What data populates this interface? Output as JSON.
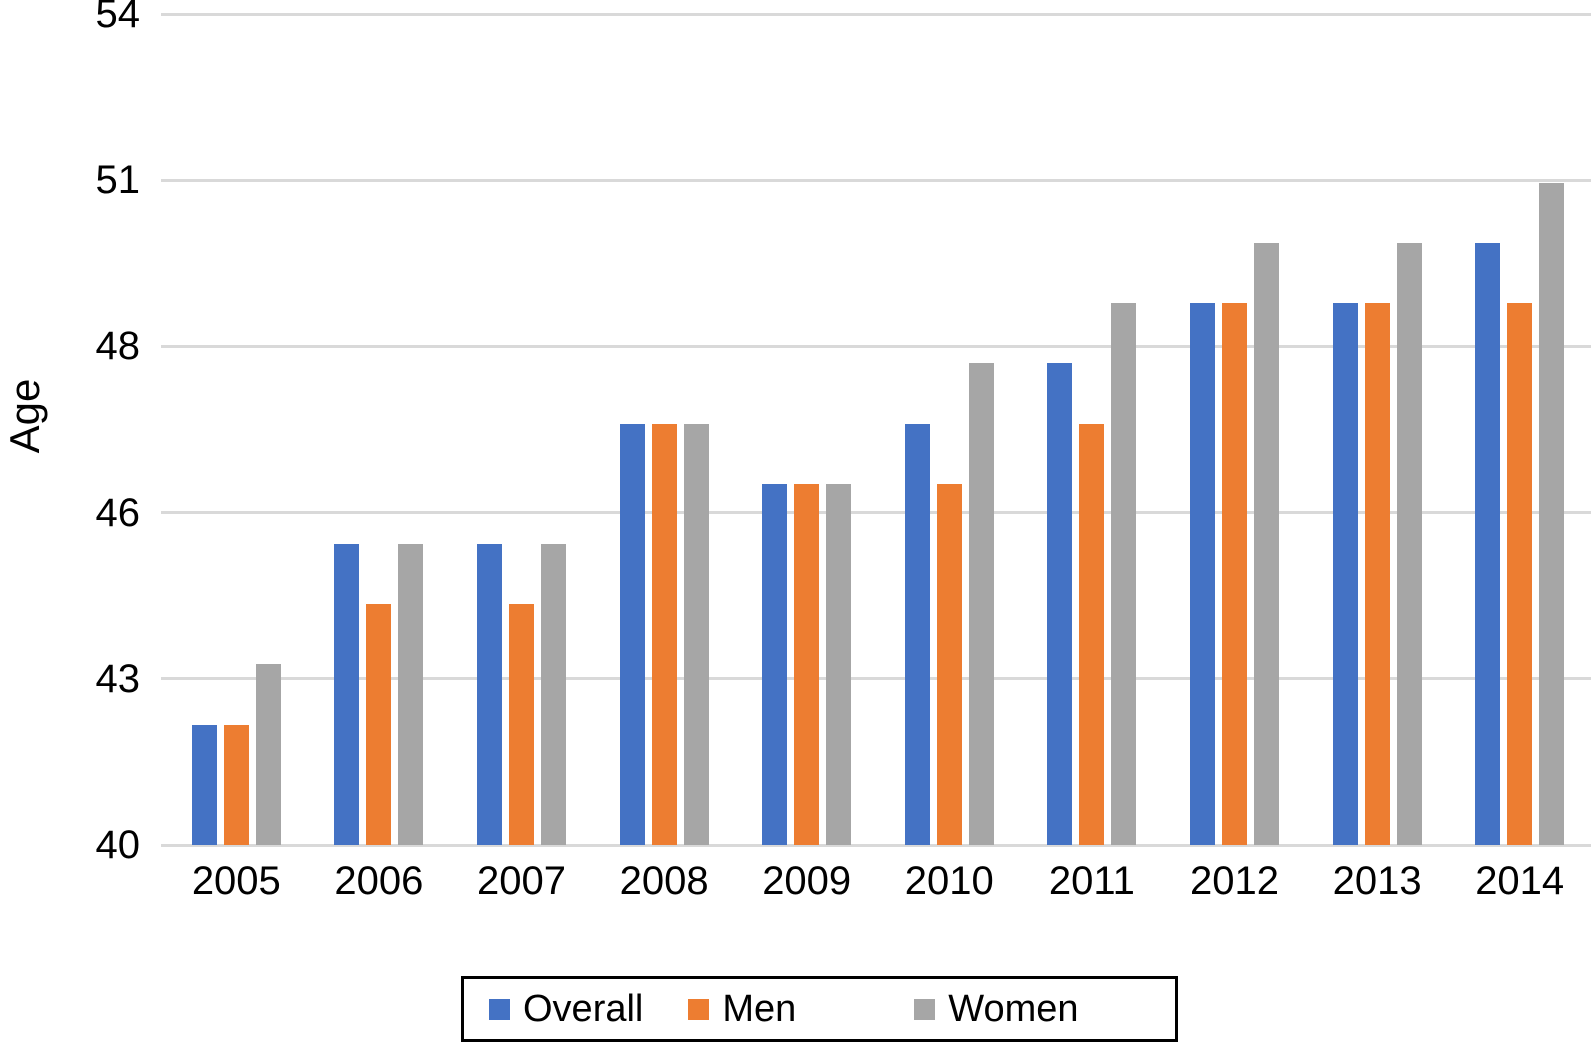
{
  "chart_data": {
    "type": "bar",
    "title": "",
    "xlabel": "",
    "ylabel": "Age",
    "categories": [
      "2005",
      "2006",
      "2007",
      "2008",
      "2009",
      "2010",
      "2011",
      "2012",
      "2013",
      "2014"
    ],
    "series": [
      {
        "name": "Overall",
        "color": "#4472C4",
        "values": [
          42,
          45,
          45,
          47,
          46,
          47,
          48,
          49,
          49,
          50
        ]
      },
      {
        "name": "Men",
        "color": "#ED7D31",
        "values": [
          42,
          44,
          44,
          47,
          46,
          46,
          47,
          49,
          49,
          49
        ]
      },
      {
        "name": "Women",
        "color": "#A6A6A6",
        "values": [
          43,
          45,
          45,
          47,
          46,
          48,
          49,
          50,
          50,
          51
        ]
      }
    ],
    "y_axis": {
      "ylim": [
        40,
        53.8
      ],
      "tick_labels": [
        "40",
        "43",
        "46",
        "48",
        "51",
        "54"
      ]
    },
    "grid": "horizontal",
    "gridline_color": "#D9D9D9",
    "legend_position": "bottom"
  }
}
